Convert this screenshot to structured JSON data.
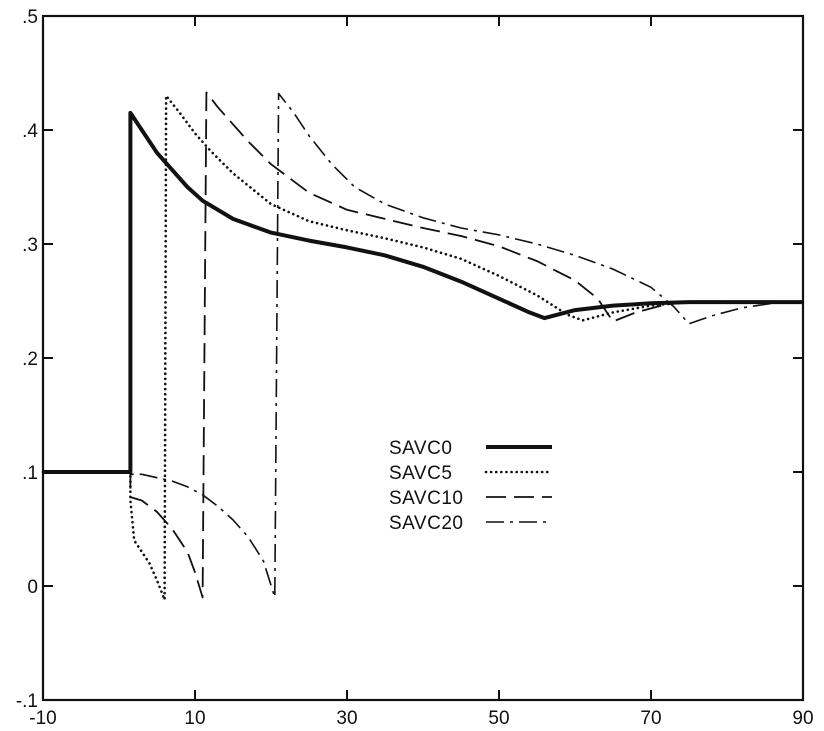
{
  "chart_data": {
    "type": "line",
    "title": "",
    "xlabel": "",
    "ylabel": "",
    "xlim": [
      -10,
      90
    ],
    "ylim": [
      -0.1,
      0.5
    ],
    "x_ticks": [
      -10,
      10,
      30,
      50,
      70,
      90
    ],
    "x_tick_labels": [
      "-10",
      "10",
      "30",
      "50",
      "70",
      "90"
    ],
    "y_ticks": [
      -0.1,
      0,
      0.1,
      0.2,
      0.3,
      0.4,
      0.5
    ],
    "y_tick_labels": [
      "-.1",
      "0",
      ".1",
      ".2",
      ".3",
      ".4",
      ".5"
    ],
    "grid": false,
    "legend_position": "center",
    "series": [
      {
        "name": "SAVC0",
        "style": "solid-thick",
        "points": [
          [
            -10,
            0.1
          ],
          [
            1,
            0.1
          ],
          [
            1.5,
            0.1
          ],
          [
            1.5,
            0.415
          ],
          [
            3,
            0.4
          ],
          [
            5,
            0.38
          ],
          [
            7,
            0.365
          ],
          [
            9,
            0.35
          ],
          [
            11,
            0.338
          ],
          [
            15,
            0.322
          ],
          [
            20,
            0.31
          ],
          [
            25,
            0.303
          ],
          [
            30,
            0.297
          ],
          [
            35,
            0.29
          ],
          [
            40,
            0.28
          ],
          [
            45,
            0.267
          ],
          [
            50,
            0.252
          ],
          [
            54,
            0.24
          ],
          [
            56,
            0.235
          ],
          [
            60,
            0.242
          ],
          [
            65,
            0.246
          ],
          [
            70,
            0.248
          ],
          [
            75,
            0.249
          ],
          [
            80,
            0.249
          ],
          [
            90,
            0.249
          ]
        ]
      },
      {
        "name": "SAVC5",
        "style": "dotted",
        "points": [
          [
            -10,
            0.1
          ],
          [
            1,
            0.1
          ],
          [
            1.5,
            0.1
          ],
          [
            1.5,
            0.075
          ],
          [
            2,
            0.04
          ],
          [
            3,
            0.03
          ],
          [
            4,
            0.02
          ],
          [
            5,
            0.005
          ],
          [
            6,
            -0.012
          ],
          [
            6.2,
            0.43
          ],
          [
            8,
            0.415
          ],
          [
            10,
            0.397
          ],
          [
            12,
            0.382
          ],
          [
            15,
            0.362
          ],
          [
            20,
            0.335
          ],
          [
            25,
            0.32
          ],
          [
            30,
            0.312
          ],
          [
            35,
            0.305
          ],
          [
            40,
            0.297
          ],
          [
            45,
            0.287
          ],
          [
            50,
            0.272
          ],
          [
            55,
            0.255
          ],
          [
            59,
            0.238
          ],
          [
            61,
            0.233
          ],
          [
            65,
            0.24
          ],
          [
            70,
            0.246
          ],
          [
            75,
            0.249
          ],
          [
            90,
            0.249
          ]
        ]
      },
      {
        "name": "SAVC10",
        "style": "dashed",
        "points": [
          [
            -10,
            0.1
          ],
          [
            1,
            0.1
          ],
          [
            1.5,
            0.1
          ],
          [
            1.5,
            0.078
          ],
          [
            3,
            0.075
          ],
          [
            5,
            0.065
          ],
          [
            7,
            0.05
          ],
          [
            9,
            0.03
          ],
          [
            10,
            0.012
          ],
          [
            11,
            -0.01
          ],
          [
            11.5,
            0.433
          ],
          [
            13,
            0.42
          ],
          [
            15,
            0.405
          ],
          [
            17,
            0.39
          ],
          [
            20,
            0.37
          ],
          [
            25,
            0.345
          ],
          [
            30,
            0.33
          ],
          [
            35,
            0.322
          ],
          [
            40,
            0.314
          ],
          [
            45,
            0.307
          ],
          [
            50,
            0.298
          ],
          [
            55,
            0.285
          ],
          [
            60,
            0.268
          ],
          [
            63,
            0.252
          ],
          [
            65,
            0.232
          ],
          [
            68,
            0.24
          ],
          [
            72,
            0.247
          ],
          [
            75,
            0.249
          ],
          [
            90,
            0.249
          ]
        ]
      },
      {
        "name": "SAVC20",
        "style": "dash-dot",
        "points": [
          [
            -10,
            0.1
          ],
          [
            1,
            0.1
          ],
          [
            1.5,
            0.1
          ],
          [
            1.5,
            0.098
          ],
          [
            3,
            0.098
          ],
          [
            5,
            0.095
          ],
          [
            7,
            0.092
          ],
          [
            9,
            0.087
          ],
          [
            11,
            0.08
          ],
          [
            13,
            0.07
          ],
          [
            15,
            0.058
          ],
          [
            17,
            0.043
          ],
          [
            19,
            0.022
          ],
          [
            20.5,
            -0.01
          ],
          [
            21,
            0.432
          ],
          [
            23,
            0.415
          ],
          [
            25,
            0.395
          ],
          [
            28,
            0.37
          ],
          [
            31,
            0.35
          ],
          [
            35,
            0.335
          ],
          [
            40,
            0.323
          ],
          [
            45,
            0.314
          ],
          [
            50,
            0.308
          ],
          [
            55,
            0.3
          ],
          [
            60,
            0.29
          ],
          [
            65,
            0.278
          ],
          [
            70,
            0.262
          ],
          [
            73,
            0.245
          ],
          [
            75,
            0.23
          ],
          [
            78,
            0.237
          ],
          [
            82,
            0.244
          ],
          [
            86,
            0.248
          ],
          [
            90,
            0.249
          ]
        ]
      }
    ]
  }
}
